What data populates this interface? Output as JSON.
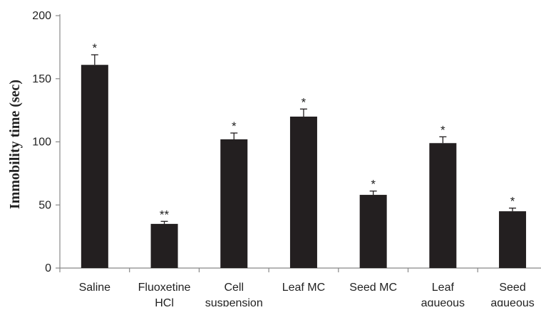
{
  "chart_data": {
    "type": "bar",
    "categories": [
      [
        "Saline"
      ],
      [
        "Fluoxetine",
        "HCl"
      ],
      [
        "Cell",
        "suspension"
      ],
      [
        "Leaf MC"
      ],
      [
        "Seed MC"
      ],
      [
        "Leaf",
        "aqueous"
      ],
      [
        "Seed",
        "aqueous"
      ]
    ],
    "values": [
      161,
      35,
      102,
      120,
      58,
      99,
      45
    ],
    "errors": [
      8,
      2,
      5,
      6,
      3,
      5,
      2.5
    ],
    "significance": [
      "*",
      "**",
      "*",
      "*",
      "*",
      "*",
      "*"
    ],
    "title": "",
    "xlabel": "",
    "ylabel": "Immobility time (sec)",
    "ylim": [
      0,
      200
    ],
    "yticks": [
      0,
      50,
      100,
      150,
      200
    ],
    "grid": false,
    "legend": "none",
    "bar_color": "#231f20"
  }
}
